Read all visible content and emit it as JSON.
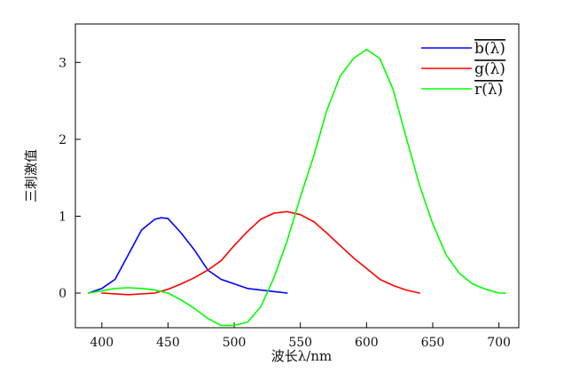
{
  "chart_data": {
    "type": "line",
    "title": "",
    "xlabel": "波长λ/nm",
    "ylabel": "三刺激值",
    "xlim": [
      380,
      715
    ],
    "ylim": [
      -0.45,
      3.5
    ],
    "xticks": [
      400,
      450,
      500,
      550,
      600,
      650,
      700
    ],
    "yticks": [
      0,
      1,
      2,
      3
    ],
    "grid": false,
    "legend_position": "top-right",
    "series": [
      {
        "name": "b(λ)",
        "color": "#0000ff",
        "x": [
          390,
          400,
          410,
          420,
          430,
          440,
          445,
          450,
          460,
          470,
          480,
          490,
          500,
          510,
          520,
          530,
          540
        ],
        "y": [
          0.0,
          0.06,
          0.18,
          0.5,
          0.82,
          0.96,
          0.98,
          0.97,
          0.78,
          0.56,
          0.3,
          0.18,
          0.12,
          0.06,
          0.04,
          0.02,
          0.0
        ]
      },
      {
        "name": "g(λ)",
        "color": "#ff0000",
        "x": [
          400,
          420,
          440,
          450,
          460,
          470,
          480,
          490,
          500,
          510,
          520,
          530,
          540,
          550,
          560,
          570,
          580,
          590,
          600,
          610,
          620,
          630,
          640
        ],
        "y": [
          0.0,
          -0.02,
          0.0,
          0.05,
          0.12,
          0.2,
          0.3,
          0.42,
          0.62,
          0.8,
          0.96,
          1.04,
          1.06,
          1.02,
          0.93,
          0.78,
          0.62,
          0.46,
          0.32,
          0.18,
          0.1,
          0.04,
          0.0
        ]
      },
      {
        "name": "r(λ)",
        "color": "#00ff00",
        "x": [
          390,
          400,
          410,
          420,
          430,
          440,
          450,
          460,
          470,
          480,
          490,
          500,
          510,
          520,
          530,
          540,
          550,
          560,
          570,
          580,
          590,
          600,
          610,
          620,
          630,
          640,
          650,
          660,
          670,
          680,
          690,
          700,
          705
        ],
        "y": [
          0.0,
          0.03,
          0.06,
          0.07,
          0.06,
          0.04,
          0.0,
          -0.09,
          -0.2,
          -0.33,
          -0.42,
          -0.42,
          -0.38,
          -0.18,
          0.2,
          0.68,
          1.25,
          1.78,
          2.38,
          2.82,
          3.05,
          3.17,
          3.05,
          2.65,
          2.02,
          1.4,
          0.9,
          0.5,
          0.26,
          0.12,
          0.05,
          0.0,
          0.0
        ]
      }
    ]
  }
}
